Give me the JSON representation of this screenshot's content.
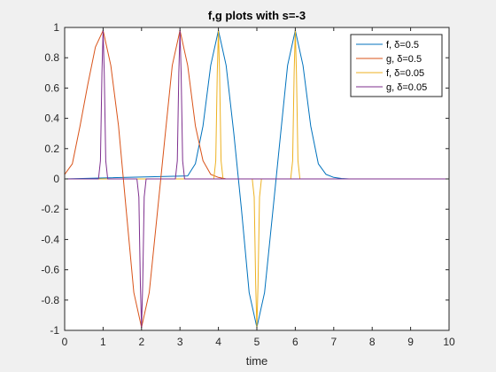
{
  "chart_data": {
    "type": "line",
    "title": "f,g plots with s=-3",
    "xlabel": "time",
    "ylabel": "",
    "xlim": [
      0,
      10
    ],
    "ylim": [
      -1,
      1
    ],
    "xticks": [
      0,
      1,
      2,
      3,
      4,
      5,
      6,
      7,
      8,
      9,
      10
    ],
    "yticks": [
      -1,
      -0.8,
      -0.6,
      -0.4,
      -0.2,
      0,
      0.2,
      0.4,
      0.6,
      0.8,
      1
    ],
    "xtick_labels": [
      "0",
      "1",
      "2",
      "3",
      "4",
      "5",
      "6",
      "7",
      "8",
      "9",
      "10"
    ],
    "ytick_labels": [
      "-1",
      "-0.8",
      "-0.6",
      "-0.4",
      "-0.2",
      "0",
      "0.2",
      "0.4",
      "0.6",
      "0.8",
      "1"
    ],
    "grid": false,
    "legend_position": "top-right",
    "series": [
      {
        "name": "f, δ=0.5",
        "color": "#0072bd",
        "x": [
          0,
          3.2,
          3.4,
          3.6,
          3.8,
          4.0,
          4.2,
          4.4,
          4.6,
          4.8,
          5.0,
          5.2,
          5.4,
          5.6,
          5.8,
          6.0,
          6.2,
          6.4,
          6.6,
          6.8,
          7.0,
          7.2,
          7.4,
          10
        ],
        "y": [
          0,
          0.02,
          0.1,
          0.35,
          0.75,
          0.98,
          0.75,
          0.3,
          -0.2,
          -0.75,
          -0.98,
          -0.75,
          -0.25,
          0.25,
          0.75,
          0.98,
          0.75,
          0.35,
          0.1,
          0.03,
          0.01,
          0.003,
          0,
          0
        ]
      },
      {
        "name": "g, δ=0.5",
        "color": "#d95319",
        "x": [
          0,
          0.2,
          0.4,
          0.6,
          0.8,
          1.0,
          1.2,
          1.4,
          1.6,
          1.8,
          2.0,
          2.2,
          2.4,
          2.6,
          2.8,
          3.0,
          3.2,
          3.4,
          3.6,
          3.8,
          4.0,
          4.2,
          10
        ],
        "y": [
          0.03,
          0.1,
          0.35,
          0.62,
          0.87,
          0.98,
          0.75,
          0.35,
          -0.2,
          -0.75,
          -0.98,
          -0.75,
          -0.25,
          0.25,
          0.75,
          0.98,
          0.75,
          0.35,
          0.12,
          0.03,
          0.01,
          0,
          0
        ]
      },
      {
        "name": "f, δ=0.05",
        "color": "#edb120",
        "x": [
          0,
          3.88,
          3.93,
          3.97,
          4.0,
          4.03,
          4.07,
          4.12,
          4.88,
          4.93,
          4.97,
          5.0,
          5.03,
          5.07,
          5.12,
          5.88,
          5.93,
          5.97,
          6.0,
          6.03,
          6.07,
          6.12,
          10
        ],
        "y": [
          0,
          0,
          0.12,
          0.7,
          0.98,
          0.7,
          0.12,
          0,
          0,
          -0.12,
          -0.7,
          -0.98,
          -0.7,
          -0.12,
          0,
          0,
          0.12,
          0.7,
          0.98,
          0.7,
          0.12,
          0,
          0
        ]
      },
      {
        "name": "g, δ=0.05",
        "color": "#7e2f8e",
        "x": [
          0,
          0.88,
          0.93,
          0.97,
          1.0,
          1.03,
          1.07,
          1.12,
          1.88,
          1.93,
          1.97,
          2.0,
          2.03,
          2.07,
          2.12,
          2.88,
          2.93,
          2.97,
          3.0,
          3.03,
          3.07,
          3.12,
          10
        ],
        "y": [
          0,
          0,
          0.12,
          0.7,
          0.98,
          0.7,
          0.12,
          0,
          0,
          -0.12,
          -0.7,
          -0.98,
          -0.7,
          -0.12,
          0,
          0,
          0.12,
          0.7,
          0.98,
          0.7,
          0.12,
          0,
          0
        ]
      }
    ]
  }
}
